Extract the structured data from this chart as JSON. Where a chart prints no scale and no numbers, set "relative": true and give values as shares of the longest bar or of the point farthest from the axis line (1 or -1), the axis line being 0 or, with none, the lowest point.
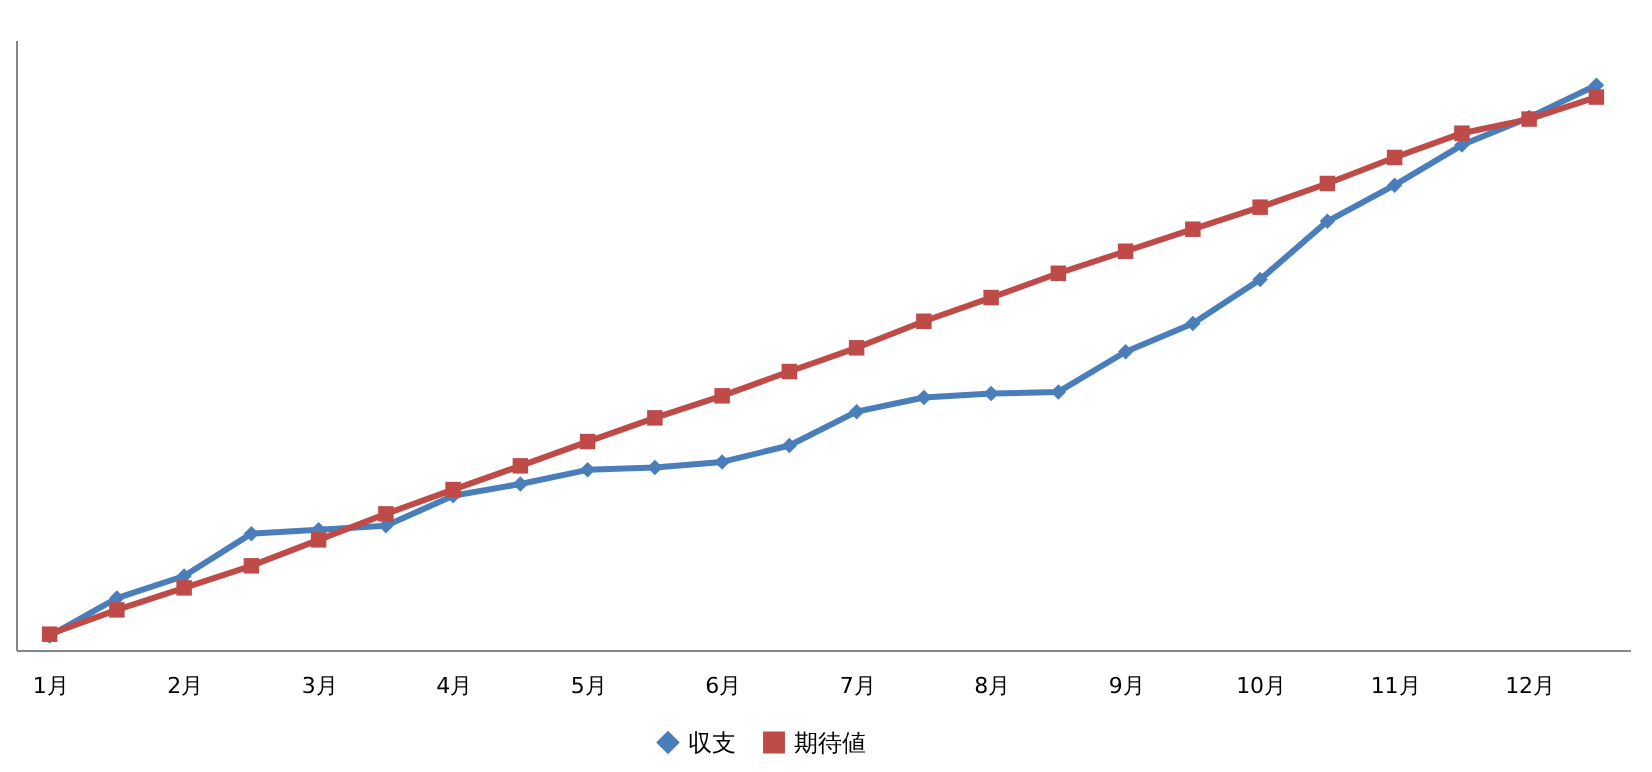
{
  "chart_data": {
    "type": "line",
    "relative": true,
    "categories": [
      "1月",
      null,
      "2月",
      null,
      "3月",
      null,
      "4月",
      null,
      "5月",
      null,
      "6月",
      null,
      "7月",
      null,
      "8月",
      null,
      "9月",
      null,
      "10月",
      null,
      "11月",
      null,
      "12月",
      null
    ],
    "series": [
      {
        "name": "収支",
        "color": "#4a7ebb",
        "marker": "diamond",
        "values": [
          0.025,
          0.092,
          0.131,
          0.206,
          0.213,
          0.22,
          0.273,
          0.294,
          0.319,
          0.323,
          0.333,
          0.362,
          0.422,
          0.447,
          0.454,
          0.457,
          0.528,
          0.578,
          0.656,
          0.759,
          0.823,
          0.894,
          0.943,
          1
        ]
      },
      {
        "name": "期待値",
        "color": "#be4b48",
        "marker": "square",
        "values": [
          0.028,
          0.071,
          0.11,
          0.149,
          0.195,
          0.241,
          0.284,
          0.326,
          0.369,
          0.411,
          0.45,
          0.493,
          0.535,
          0.582,
          0.624,
          0.667,
          0.706,
          0.745,
          0.784,
          0.826,
          0.872,
          0.915,
          0.94,
          0.979
        ]
      }
    ],
    "legend": "bottom",
    "grid": false,
    "line_style": "solid"
  }
}
